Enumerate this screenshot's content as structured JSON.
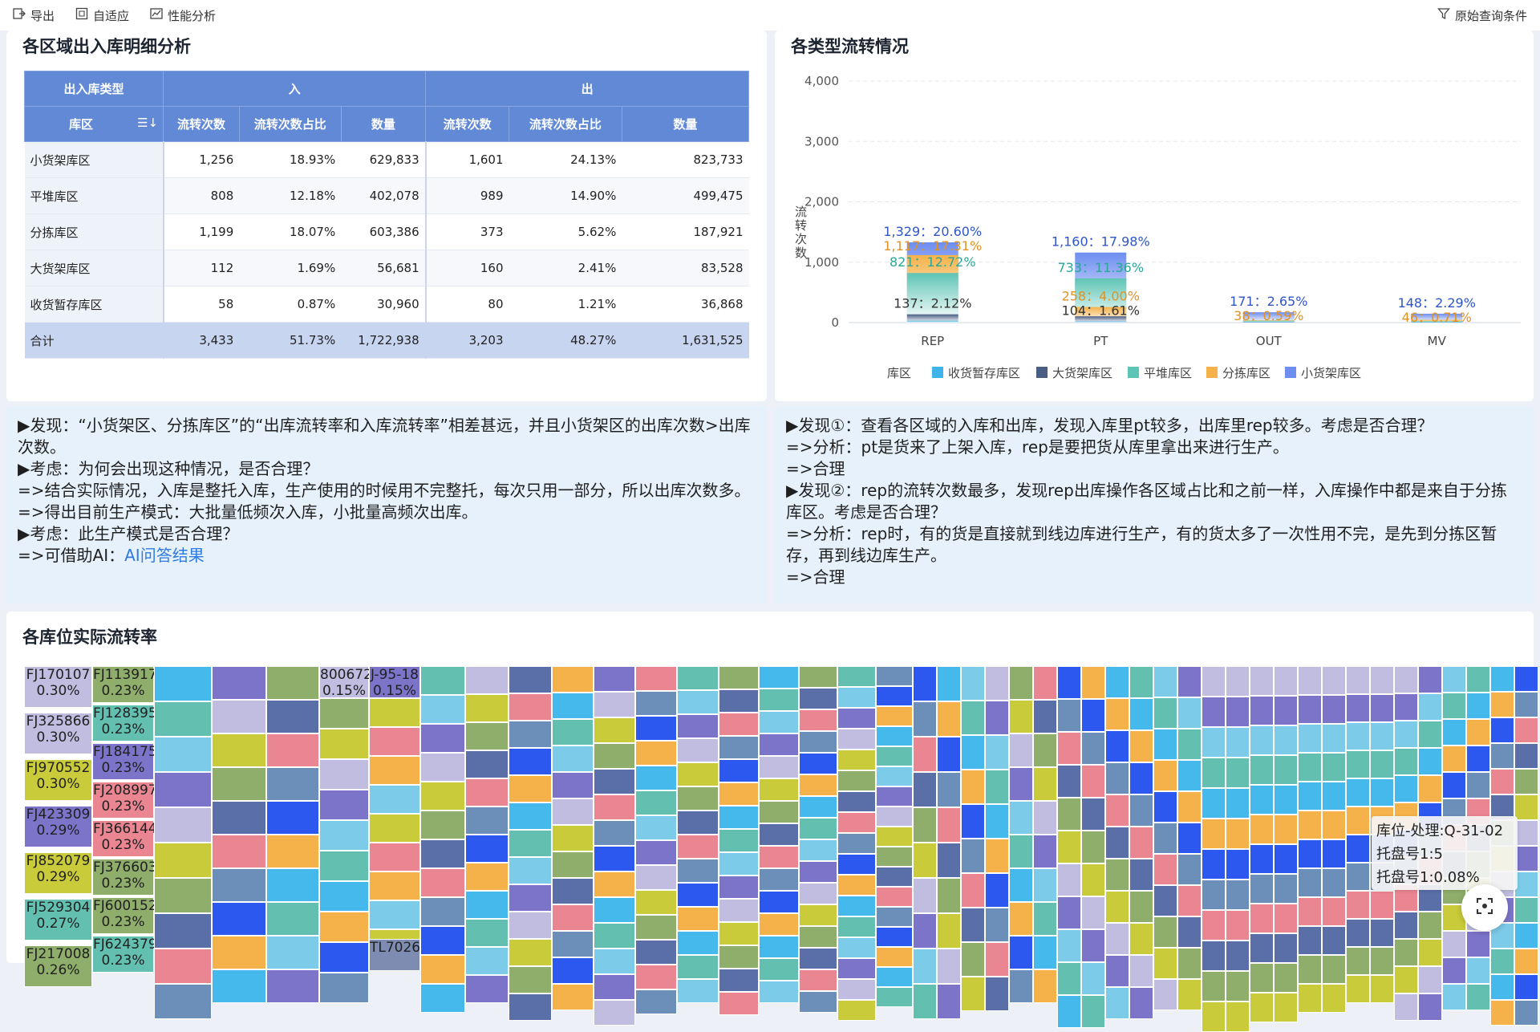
{
  "toolbar": {
    "export": "导出",
    "adaptive": "自适应",
    "perf": "性能分析",
    "query": "原始查询条件"
  },
  "table_panel": {
    "title": "各区域出入库明细分析",
    "header_group": {
      "type": "出入库类型",
      "in": "入",
      "out": "出"
    },
    "columns": [
      "库区",
      "流转次数",
      "流转次数占比",
      "数量",
      "流转次数",
      "流转次数占比",
      "数量"
    ],
    "rows": [
      [
        "小货架库区",
        "1,256",
        "18.93%",
        "629,833",
        "1,601",
        "24.13%",
        "823,733"
      ],
      [
        "平堆库区",
        "808",
        "12.18%",
        "402,078",
        "989",
        "14.90%",
        "499,475"
      ],
      [
        "分拣库区",
        "1,199",
        "18.07%",
        "603,386",
        "373",
        "5.62%",
        "187,921"
      ],
      [
        "大货架库区",
        "112",
        "1.69%",
        "56,681",
        "160",
        "2.41%",
        "83,528"
      ],
      [
        "收货暂存库区",
        "58",
        "0.87%",
        "30,960",
        "80",
        "1.21%",
        "36,868"
      ]
    ],
    "total": [
      "合计",
      "3,433",
      "51.73%",
      "1,722,938",
      "3,203",
      "48.27%",
      "1,631,525"
    ]
  },
  "chart_panel": {
    "title": "各类型流转情况",
    "labels": [
      {
        "cat": "REP",
        "value": 1329,
        "text": "1,329：20.60%",
        "color": "#2f55c7"
      },
      {
        "cat": "REP",
        "value": 1117,
        "text": "1,117：17.31%",
        "color": "#e29223"
      },
      {
        "cat": "REP",
        "value": 821,
        "text": "821：12.72%",
        "color": "#2aa795"
      },
      {
        "cat": "REP",
        "value": 137,
        "text": "137：2.12%",
        "color": "#333333"
      },
      {
        "cat": "PT",
        "value": 1160,
        "text": "1,160：17.98%",
        "color": "#2f55c7"
      },
      {
        "cat": "PT",
        "value": 733,
        "text": "733：11.36%",
        "color": "#2aa795"
      },
      {
        "cat": "PT",
        "value": 258,
        "text": "258：4.00%",
        "color": "#e29223"
      },
      {
        "cat": "PT",
        "value": 104,
        "text": "104：1.61%",
        "color": "#333333"
      },
      {
        "cat": "OUT",
        "value": 171,
        "text": "171：2.65%",
        "color": "#2f55c7"
      },
      {
        "cat": "OUT",
        "value": 38,
        "text": "38：0.59%",
        "color": "#e29223"
      },
      {
        "cat": "MV",
        "value": 148,
        "text": "148：2.29%",
        "color": "#2f55c7"
      },
      {
        "cat": "MV",
        "value": 46,
        "text": "46：0.71%",
        "color": "#e29223"
      }
    ]
  },
  "chart_data": {
    "type": "bar",
    "categories": [
      "REP",
      "PT",
      "OUT",
      "MV"
    ],
    "ylabel": "流转次数",
    "ylim": [
      0,
      4000
    ],
    "yticks": [
      "0",
      "1,000",
      "2,000",
      "3,000",
      "4,000"
    ],
    "legend_title": "库区",
    "legend_position": "bottom",
    "series": [
      {
        "name": "收货暂存库区",
        "color": "#3fb4ea",
        "values": [
          30,
          20,
          8,
          5
        ]
      },
      {
        "name": "大货架库区",
        "color": "#4a5d85",
        "values": [
          137,
          104,
          10,
          8
        ]
      },
      {
        "name": "平堆库区",
        "color": "#5ec4b5",
        "values": [
          821,
          733,
          30,
          25
        ]
      },
      {
        "name": "分拣库区",
        "color": "#f5b24a",
        "values": [
          1117,
          258,
          38,
          46
        ]
      },
      {
        "name": "小货架库区",
        "color": "#6d8df0",
        "values": [
          1329,
          1160,
          171,
          148
        ]
      }
    ]
  },
  "notes_left": [
    "▶发现：“小货架区、分拣库区”的“出库流转率和入库流转率”相差甚远，并且小货架区的出库次数>出库次数。",
    "▶考虑：为何会出现这种情况，是否合理？",
    "=>结合实际情况，入库是整托入库，生产使用的时候用不完整托，每次只用一部分，所以出库次数多。",
    "=>得出目前生产模式：大批量低频次入库，小批量高频次出库。",
    "▶考虑：此生产模式是否合理？"
  ],
  "notes_left_last": {
    "prefix": "=>可借助AI：",
    "link": "AI问答结果"
  },
  "notes_right": [
    "▶发现①：查看各区域的入库和出库，发现入库里pt较多，出库里rep较多。考虑是否合理？",
    "=>分析：pt是货来了上架入库，rep是要把货从库里拿出来进行生产。",
    "=>合理",
    "▶发现②：rep的流转次数最多，发现rep出库操作各区域占比和之前一样，入库操作中都是来自于分拣库区。考虑是否合理？",
    "=>分析：rep时，有的货是直接就到线边库进行生产，有的货太多了一次性用不完，是先到分拣区暂存，再到线边库生产。",
    "=>合理"
  ],
  "treemap_panel": {
    "title": "各库位实际流转率",
    "labeled": [
      {
        "name": "FJ170107",
        "pct": "0.30%",
        "color": "#c0bde0"
      },
      {
        "name": "FJ325866",
        "pct": "0.30%",
        "color": "#c0bde0"
      },
      {
        "name": "FJ970552",
        "pct": "0.30%",
        "color": "#c9cb3a"
      },
      {
        "name": "FJ423309",
        "pct": "0.29%",
        "color": "#7c74c9"
      },
      {
        "name": "FJ852079",
        "pct": "0.29%",
        "color": "#c9cb3a"
      },
      {
        "name": "FJ529304",
        "pct": "0.27%",
        "color": "#63c0b0"
      },
      {
        "name": "FJ217008",
        "pct": "0.26%",
        "color": "#8fad6b"
      },
      {
        "name": "FJ113917",
        "pct": "0.23%",
        "color": "#8fad6b"
      },
      {
        "name": "FJ128395",
        "pct": "0.23%",
        "color": "#63c0b0"
      },
      {
        "name": "FJ184175",
        "pct": "0.23%",
        "color": "#7c74c9"
      },
      {
        "name": "FJ208997",
        "pct": "0.23%",
        "color": "#ea8592"
      },
      {
        "name": "FJ366144",
        "pct": "0.23%",
        "color": "#ea8592"
      },
      {
        "name": "FJ376603",
        "pct": "0.23%",
        "color": "#8fad6b"
      },
      {
        "name": "FJ600152",
        "pct": "0.23%",
        "color": "#8fad6b"
      },
      {
        "name": "FJ624379",
        "pct": "0.23%",
        "color": "#63c0b0"
      },
      {
        "name": "800672",
        "pct": "0.15%",
        "color": "#c0bde0"
      },
      {
        "name": "J-95-18",
        "pct": "0.15%",
        "color": "#7c74c9"
      },
      {
        "name": "TL7026",
        "pct": "",
        "color": "#7d8cb0"
      }
    ],
    "palette": [
      "#46b9ec",
      "#c9cb3a",
      "#2c58f0",
      "#7c74c9",
      "#ea8592",
      "#63c0b0",
      "#8fad6b",
      "#f5b24a",
      "#c0bde0",
      "#6b8fb8",
      "#7ccbe8",
      "#5a6ea8"
    ],
    "tooltip": [
      "库位-处理:Q-31-02",
      "托盘号1:5",
      "托盘号1:0.08%"
    ]
  }
}
